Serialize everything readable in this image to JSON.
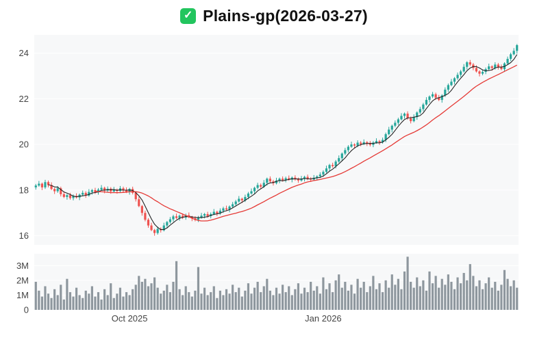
{
  "title": {
    "icon": "checkmark-icon",
    "icon_glyph": "✓",
    "text": "Plains-gp(2026-03-27)"
  },
  "chart_data": {
    "type": "candlestick",
    "title": "Plains-gp(2026-03-27)",
    "legend_position": "none",
    "grid": false,
    "x_axis": {
      "ticks": [
        {
          "index": 30,
          "label": "Oct 2025"
        },
        {
          "index": 92,
          "label": "Jan 2026"
        }
      ]
    },
    "price_axis": {
      "ticks": [
        "16",
        "18",
        "20",
        "22",
        "24"
      ],
      "tick_values": [
        16,
        18,
        20,
        22,
        24
      ],
      "range": [
        15.6,
        24.8
      ]
    },
    "volume_axis": {
      "ticks": [
        {
          "v": 0,
          "label": "0"
        },
        {
          "v": 1,
          "label": "1M"
        },
        {
          "v": 2,
          "label": "2M"
        },
        {
          "v": 3,
          "label": "3M"
        }
      ],
      "range": [
        0,
        3.8
      ],
      "unit": "millions"
    },
    "overlays": [
      {
        "name": "short-ma",
        "window": 5,
        "color": "#222222",
        "width": 1.1
      },
      {
        "name": "long-ma",
        "window": 20,
        "color": "#e53935",
        "width": 1.3
      }
    ],
    "colors": {
      "up": "#26a69a",
      "down": "#ef5350",
      "volume": "#8e979e",
      "panel": "#f7f8f9",
      "axis_text": "#444444",
      "gridline": "#ffffff"
    },
    "series": {
      "opens": [
        18.12,
        18.2,
        18.28,
        18.12,
        18.35,
        18.22,
        18.05,
        17.95,
        18.08,
        17.82,
        17.7,
        17.78,
        17.65,
        17.74,
        17.68,
        17.8,
        17.88,
        17.76,
        17.92,
        18.0,
        17.9,
        18.02,
        18.1,
        17.98,
        18.06,
        17.94,
        18.02,
        17.96,
        18.08,
        18.0,
        17.92,
        18.05,
        17.88,
        17.6,
        17.3,
        17.0,
        16.7,
        16.45,
        16.25,
        16.12,
        16.3,
        16.24,
        16.45,
        16.6,
        16.72,
        16.85,
        16.78,
        16.88,
        16.8,
        16.9,
        16.82,
        16.76,
        16.7,
        16.8,
        16.88,
        16.95,
        16.86,
        16.95,
        17.05,
        16.98,
        17.1,
        17.2,
        17.15,
        17.28,
        17.38,
        17.5,
        17.62,
        17.55,
        17.7,
        17.85,
        17.95,
        18.1,
        18.22,
        18.15,
        18.32,
        18.5,
        18.38,
        18.3,
        18.42,
        18.5,
        18.44,
        18.52,
        18.46,
        18.55,
        18.48,
        18.42,
        18.5,
        18.58,
        18.5,
        18.46,
        18.54,
        18.6,
        18.68,
        18.8,
        18.95,
        19.1,
        19.05,
        19.25,
        19.4,
        19.6,
        19.75,
        19.9,
        20.0,
        19.95,
        20.08,
        20.02,
        20.1,
        20.05,
        19.98,
        20.08,
        20.15,
        20.1,
        20.2,
        20.45,
        20.65,
        20.82,
        20.95,
        21.1,
        21.25,
        21.35,
        21.15,
        21.02,
        21.2,
        21.4,
        21.55,
        21.75,
        21.95,
        22.1,
        22.2,
        22.05,
        21.95,
        22.15,
        22.4,
        22.6,
        22.75,
        22.9,
        23.05,
        23.2,
        23.4,
        23.6,
        23.5,
        23.35,
        23.2,
        23.1,
        23.18,
        23.3,
        23.42,
        23.35,
        23.5,
        23.38,
        23.3,
        23.55,
        23.75,
        23.95,
        24.1
      ],
      "highs": [
        18.27,
        18.4,
        18.33,
        18.45,
        18.42,
        18.34,
        18.1,
        18.18,
        18.15,
        17.94,
        17.83,
        17.88,
        17.81,
        17.86,
        17.85,
        17.98,
        17.95,
        18.04,
        18.05,
        18.1,
        18.09,
        18.22,
        18.15,
        18.16,
        18.13,
        18.14,
        18.07,
        18.18,
        18.15,
        18.12,
        18.1,
        18.15,
        17.95,
        17.72,
        17.35,
        17.1,
        16.77,
        16.57,
        16.3,
        16.4,
        16.37,
        16.57,
        16.65,
        16.82,
        16.92,
        16.97,
        16.93,
        16.98,
        16.97,
        17.02,
        16.87,
        16.86,
        16.87,
        17.0,
        17.0,
        17.05,
        17.02,
        17.17,
        17.1,
        17.2,
        17.27,
        17.32,
        17.33,
        17.48,
        17.57,
        17.74,
        17.67,
        17.8,
        17.92,
        18.07,
        18.15,
        18.32,
        18.29,
        18.44,
        18.55,
        18.6,
        18.45,
        18.54,
        18.55,
        18.6,
        18.59,
        18.64,
        18.6,
        18.65,
        18.55,
        18.62,
        18.63,
        18.68,
        18.57,
        18.66,
        18.65,
        18.78,
        18.87,
        19.07,
        19.15,
        19.2,
        19.32,
        19.52,
        19.65,
        19.85,
        19.97,
        20.12,
        20.05,
        20.18,
        20.15,
        20.22,
        20.15,
        20.15,
        20.15,
        20.27,
        20.2,
        20.3,
        20.52,
        20.77,
        20.87,
        21.05,
        21.17,
        21.37,
        21.4,
        21.45,
        21.22,
        21.32,
        21.45,
        21.65,
        21.82,
        22.07,
        22.15,
        22.3,
        22.27,
        22.17,
        22.2,
        22.5,
        22.67,
        22.87,
        22.95,
        23.15,
        23.27,
        23.52,
        23.65,
        23.7,
        23.57,
        23.47,
        23.25,
        23.28,
        23.37,
        23.54,
        23.47,
        23.6,
        23.57,
        23.5,
        23.6,
        23.85,
        24.02,
        24.22,
        24.4
      ],
      "lows": [
        18.02,
        18.15,
        18.0,
        18.05,
        18.12,
        18.0,
        17.83,
        17.88,
        17.72,
        17.65,
        17.58,
        17.58,
        17.55,
        17.63,
        17.56,
        17.73,
        17.66,
        17.71,
        17.8,
        17.83,
        17.8,
        17.97,
        17.86,
        17.91,
        17.84,
        17.89,
        17.84,
        17.89,
        17.9,
        17.87,
        17.8,
        17.81,
        17.5,
        17.25,
        16.88,
        16.63,
        16.35,
        16.2,
        16.0,
        16.05,
        16.14,
        16.19,
        16.33,
        16.53,
        16.62,
        16.73,
        16.66,
        16.73,
        16.7,
        16.77,
        16.64,
        16.63,
        16.6,
        16.75,
        16.76,
        16.79,
        16.76,
        16.9,
        16.86,
        16.91,
        17.0,
        17.1,
        17.03,
        17.21,
        17.28,
        17.45,
        17.43,
        17.48,
        17.6,
        17.8,
        17.83,
        18.03,
        18.05,
        18.1,
        18.2,
        18.31,
        18.2,
        18.25,
        18.3,
        18.37,
        18.34,
        18.41,
        18.34,
        18.41,
        18.32,
        18.37,
        18.38,
        18.43,
        18.36,
        18.41,
        18.42,
        18.53,
        18.58,
        18.75,
        18.83,
        18.98,
        18.95,
        19.2,
        19.28,
        19.53,
        19.65,
        19.85,
        19.83,
        19.88,
        19.92,
        19.97,
        19.93,
        19.91,
        19.88,
        20.03,
        19.98,
        20.03,
        20.1,
        20.4,
        20.53,
        20.75,
        20.85,
        21.05,
        21.13,
        21.08,
        20.92,
        20.97,
        21.08,
        21.33,
        21.45,
        21.7,
        21.83,
        22.03,
        21.95,
        21.9,
        21.83,
        22.08,
        22.3,
        22.55,
        22.63,
        22.83,
        22.95,
        23.15,
        23.28,
        23.43,
        23.25,
        23.15,
        22.98,
        23.03,
        23.08,
        23.25,
        23.23,
        23.28,
        23.28,
        23.25,
        23.18,
        23.48,
        23.65,
        23.9,
        23.98
      ],
      "closes": [
        18.2,
        18.28,
        18.12,
        18.35,
        18.22,
        18.05,
        17.95,
        18.08,
        17.82,
        17.7,
        17.78,
        17.65,
        17.74,
        17.68,
        17.8,
        17.88,
        17.76,
        17.92,
        18.0,
        17.9,
        18.02,
        18.1,
        17.98,
        18.06,
        17.94,
        18.02,
        17.96,
        18.08,
        18.0,
        17.92,
        18.05,
        17.88,
        17.6,
        17.3,
        17.0,
        16.7,
        16.45,
        16.25,
        16.12,
        16.3,
        16.24,
        16.45,
        16.6,
        16.72,
        16.85,
        16.78,
        16.88,
        16.8,
        16.9,
        16.82,
        16.76,
        16.7,
        16.8,
        16.88,
        16.95,
        16.86,
        16.95,
        17.05,
        16.98,
        17.1,
        17.2,
        17.15,
        17.28,
        17.38,
        17.5,
        17.62,
        17.55,
        17.7,
        17.85,
        17.95,
        18.1,
        18.22,
        18.15,
        18.32,
        18.5,
        18.38,
        18.3,
        18.42,
        18.5,
        18.44,
        18.52,
        18.46,
        18.55,
        18.48,
        18.42,
        18.5,
        18.58,
        18.5,
        18.46,
        18.54,
        18.6,
        18.68,
        18.8,
        18.95,
        19.1,
        19.05,
        19.25,
        19.4,
        19.6,
        19.75,
        19.9,
        20.0,
        19.95,
        20.08,
        20.02,
        20.1,
        20.05,
        19.98,
        20.08,
        20.15,
        20.1,
        20.2,
        20.45,
        20.65,
        20.82,
        20.95,
        21.1,
        21.25,
        21.35,
        21.15,
        21.02,
        21.2,
        21.4,
        21.55,
        21.75,
        21.95,
        22.1,
        22.2,
        22.05,
        21.95,
        22.15,
        22.4,
        22.6,
        22.75,
        22.9,
        23.05,
        23.2,
        23.4,
        23.6,
        23.5,
        23.35,
        23.2,
        23.1,
        23.18,
        23.3,
        23.42,
        23.35,
        23.5,
        23.38,
        23.3,
        23.55,
        23.75,
        23.95,
        24.1,
        24.35
      ],
      "volumes_millions": [
        1.9,
        1.3,
        0.9,
        1.6,
        1.1,
        0.8,
        1.4,
        1.0,
        1.7,
        0.7,
        2.1,
        1.2,
        0.9,
        1.5,
        1.0,
        0.8,
        1.3,
        1.1,
        1.6,
        0.9,
        1.2,
        0.7,
        1.4,
        1.0,
        1.8,
        0.8,
        1.1,
        1.5,
        0.9,
        1.2,
        1.0,
        1.4,
        1.7,
        2.3,
        1.9,
        2.1,
        1.6,
        1.8,
        2.2,
        1.5,
        1.1,
        1.3,
        1.7,
        1.2,
        1.9,
        3.3,
        1.4,
        1.0,
        1.6,
        1.2,
        0.9,
        1.3,
        2.9,
        1.1,
        1.5,
        1.0,
        1.2,
        1.6,
        0.8,
        1.3,
        1.0,
        1.4,
        1.1,
        1.7,
        1.2,
        1.5,
        0.9,
        1.3,
        1.8,
        1.1,
        1.5,
        1.9,
        1.2,
        1.6,
        2.1,
        1.3,
        1.0,
        1.5,
        1.1,
        1.7,
        1.2,
        1.6,
        1.0,
        1.4,
        1.8,
        1.1,
        1.5,
        1.2,
        1.9,
        1.3,
        1.6,
        1.1,
        2.2,
        1.4,
        1.8,
        1.2,
        2.0,
        2.4,
        1.5,
        1.9,
        1.3,
        1.7,
        1.1,
        2.1,
        1.5,
        1.9,
        1.2,
        1.6,
        2.3,
        1.4,
        1.8,
        1.2,
        2.0,
        1.5,
        2.4,
        1.7,
        2.1,
        1.4,
        2.6,
        3.6,
        1.9,
        1.5,
        2.2,
        1.6,
        2.0,
        1.3,
        2.6,
        1.8,
        2.3,
        1.5,
        2.1,
        1.7,
        2.4,
        1.9,
        1.4,
        2.2,
        1.8,
        2.5,
        2.0,
        3.1,
        2.3,
        1.6,
        2.0,
        1.4,
        1.8,
        2.2,
        1.5,
        1.9,
        1.3,
        1.7,
        2.7,
        2.1,
        1.6,
        2.0,
        1.5
      ]
    }
  }
}
